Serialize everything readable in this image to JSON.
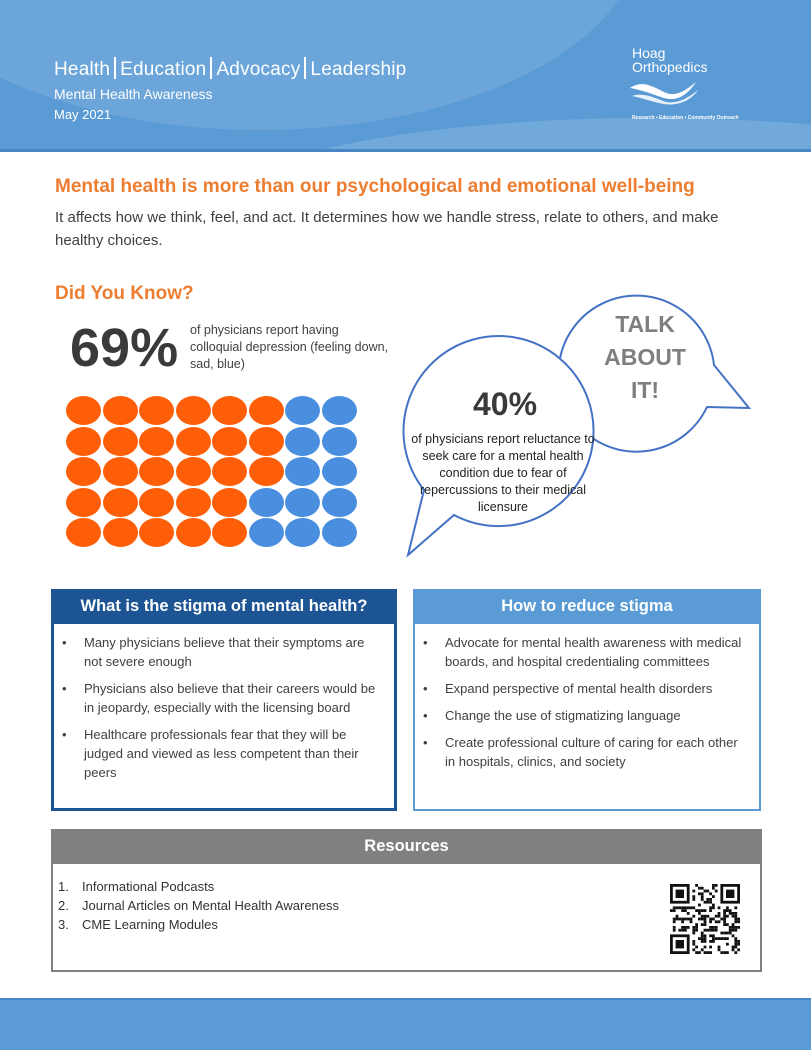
{
  "header": {
    "pillars": [
      "Health",
      "Education",
      "Advocacy",
      "Leadership"
    ],
    "subtitle": "Mental Health Awareness",
    "date": "May 2021",
    "logo_line1": "Hoag",
    "logo_line2": "Orthopedics",
    "logo_tagline": "Research • Education • Community Outreach"
  },
  "intro": {
    "headline": "Mental health is more than our psychological and emotional well-being",
    "body": "It affects how we think, feel, and act. It determines how we handle stress, relate to others, and make healthy choices."
  },
  "did_you_know": {
    "title": "Did You Know?",
    "stat1_value": "69%",
    "stat1_text": "of physicians report  having colloquial depression (feeling down, sad, blue)",
    "dots_total": 40,
    "dots_highlighted": 28,
    "dot_colors": {
      "highlighted": "#fe5e08",
      "rest": "#4a8fdf"
    },
    "talk_lines": [
      "TALK",
      "ABOUT",
      "IT!"
    ],
    "stat2_value": "40%",
    "stat2_text": "of physicians report reluctance to seek care for a mental health condition due to fear of repercussions to their medical licensure"
  },
  "stigma": {
    "title": "What is the stigma of mental health?",
    "items": [
      "Many physicians believe that their symptoms are not severe enough",
      "Physicians also believe that their careers would be in jeopardy, especially with the licensing board",
      "Healthcare professionals fear that they will be judged and viewed as less competent than their peers"
    ]
  },
  "reduce": {
    "title": "How to reduce stigma",
    "items": [
      "Advocate for mental health awareness with medical boards, and hospital credentialing committees",
      "Expand perspective of mental health disorders",
      "Change the use of stigmatizing language",
      "Create professional culture of caring for each other in hospitals, clinics, and society"
    ]
  },
  "resources": {
    "title": "Resources",
    "items": [
      {
        "num": "1.",
        "label": "Informational Podcasts"
      },
      {
        "num": "2.",
        "label": "Journal Articles on Mental Health Awareness"
      },
      {
        "num": "3.",
        "label": "CME Learning Modules"
      }
    ],
    "qr_icon": "qr-code-icon"
  },
  "colors": {
    "accent_orange": "#ed7d31",
    "header_blue": "#5b9bd5",
    "navy": "#1d5494",
    "gray": "#808080"
  }
}
